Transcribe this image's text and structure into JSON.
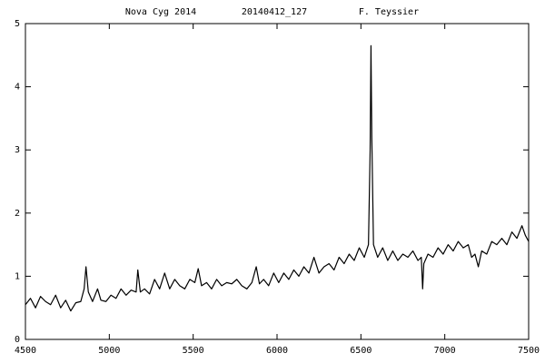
{
  "chart_data": {
    "type": "line",
    "title_parts": [
      "Nova Cyg 2014",
      "20140412_127",
      "F. Teyssier"
    ],
    "x": [
      4500,
      4530,
      4560,
      4590,
      4620,
      4650,
      4680,
      4710,
      4740,
      4770,
      4800,
      4830,
      4850,
      4861,
      4875,
      4900,
      4930,
      4950,
      4980,
      5010,
      5040,
      5070,
      5100,
      5130,
      5160,
      5170,
      5185,
      5210,
      5240,
      5270,
      5300,
      5330,
      5360,
      5390,
      5420,
      5450,
      5480,
      5510,
      5530,
      5550,
      5580,
      5610,
      5640,
      5670,
      5700,
      5730,
      5760,
      5790,
      5820,
      5850,
      5876,
      5895,
      5920,
      5950,
      5980,
      6010,
      6040,
      6070,
      6100,
      6130,
      6160,
      6190,
      6220,
      6250,
      6280,
      6310,
      6340,
      6370,
      6400,
      6430,
      6460,
      6490,
      6520,
      6545,
      6555,
      6560,
      6565,
      6575,
      6600,
      6630,
      6660,
      6690,
      6720,
      6750,
      6780,
      6810,
      6840,
      6860,
      6868,
      6875,
      6900,
      6930,
      6960,
      6990,
      7020,
      7050,
      7080,
      7110,
      7140,
      7160,
      7180,
      7200,
      7220,
      7250,
      7280,
      7310,
      7340,
      7370,
      7400,
      7430,
      7460,
      7480,
      7500
    ],
    "series": [
      {
        "color": "#000000",
        "values": [
          0.55,
          0.65,
          0.5,
          0.68,
          0.6,
          0.55,
          0.7,
          0.5,
          0.62,
          0.45,
          0.58,
          0.6,
          0.8,
          1.15,
          0.75,
          0.6,
          0.8,
          0.62,
          0.6,
          0.7,
          0.65,
          0.8,
          0.7,
          0.78,
          0.75,
          1.1,
          0.75,
          0.8,
          0.72,
          0.95,
          0.8,
          1.05,
          0.8,
          0.95,
          0.85,
          0.8,
          0.95,
          0.9,
          1.12,
          0.85,
          0.9,
          0.8,
          0.95,
          0.85,
          0.9,
          0.88,
          0.95,
          0.85,
          0.8,
          0.9,
          1.15,
          0.88,
          0.95,
          0.85,
          1.05,
          0.9,
          1.05,
          0.95,
          1.1,
          1.0,
          1.15,
          1.05,
          1.3,
          1.05,
          1.15,
          1.2,
          1.1,
          1.3,
          1.2,
          1.35,
          1.25,
          1.45,
          1.3,
          1.5,
          3.0,
          4.65,
          3.2,
          1.5,
          1.3,
          1.45,
          1.25,
          1.4,
          1.25,
          1.35,
          1.3,
          1.4,
          1.25,
          1.3,
          0.8,
          1.2,
          1.35,
          1.3,
          1.45,
          1.35,
          1.5,
          1.4,
          1.55,
          1.45,
          1.5,
          1.3,
          1.35,
          1.15,
          1.4,
          1.35,
          1.55,
          1.5,
          1.6,
          1.5,
          1.7,
          1.6,
          1.8,
          1.65,
          1.55
        ]
      }
    ],
    "xlim": [
      4500,
      7500
    ],
    "xticks": [
      4500,
      5000,
      5500,
      6000,
      6500,
      7000,
      7500
    ],
    "ylim": [
      0,
      5
    ],
    "yticks": [
      0,
      1,
      2,
      3,
      4,
      5
    ]
  }
}
